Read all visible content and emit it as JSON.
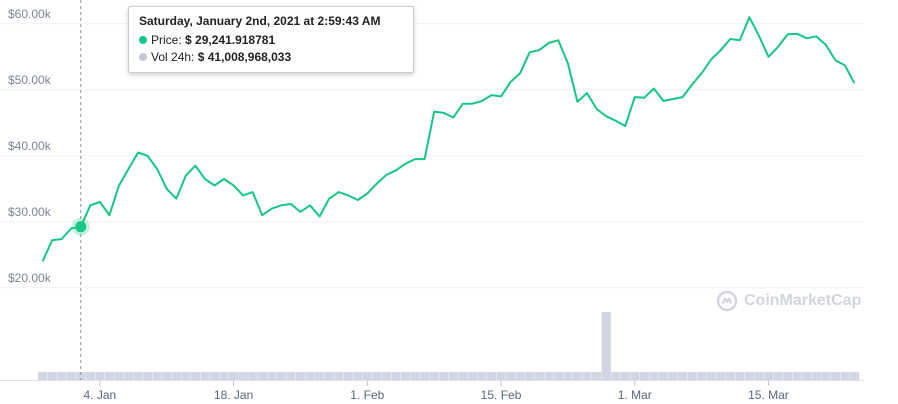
{
  "chart_data": {
    "type": "line",
    "y_tick_labels": [
      "$20.00k",
      "$30.00k",
      "$40.00k",
      "$50.00k",
      "$60.00k"
    ],
    "y_tick_values": [
      20000,
      30000,
      40000,
      50000,
      60000
    ],
    "x_tick_labels": [
      "4. Jan",
      "18. Jan",
      "1. Feb",
      "15. Feb",
      "1. Mar",
      "15. Mar"
    ],
    "x_tick_dates": [
      "2021-01-04",
      "2021-01-18",
      "2021-02-01",
      "2021-02-15",
      "2021-03-01",
      "2021-03-15"
    ],
    "ylim": [
      13000,
      63000
    ],
    "grid": true,
    "series": [
      {
        "name": "Price",
        "color": "#16c784",
        "x": [
          "2020-12-29",
          "2020-12-30",
          "2020-12-31",
          "2021-01-01",
          "2021-01-02",
          "2021-01-03",
          "2021-01-04",
          "2021-01-05",
          "2021-01-06",
          "2021-01-07",
          "2021-01-08",
          "2021-01-09",
          "2021-01-10",
          "2021-01-11",
          "2021-01-12",
          "2021-01-13",
          "2021-01-14",
          "2021-01-15",
          "2021-01-16",
          "2021-01-17",
          "2021-01-18",
          "2021-01-19",
          "2021-01-20",
          "2021-01-21",
          "2021-01-22",
          "2021-01-23",
          "2021-01-24",
          "2021-01-25",
          "2021-01-26",
          "2021-01-27",
          "2021-01-28",
          "2021-01-29",
          "2021-01-30",
          "2021-01-31",
          "2021-02-01",
          "2021-02-02",
          "2021-02-03",
          "2021-02-04",
          "2021-02-05",
          "2021-02-06",
          "2021-02-07",
          "2021-02-08",
          "2021-02-09",
          "2021-02-10",
          "2021-02-11",
          "2021-02-12",
          "2021-02-13",
          "2021-02-14",
          "2021-02-15",
          "2021-02-16",
          "2021-02-17",
          "2021-02-18",
          "2021-02-19",
          "2021-02-20",
          "2021-02-21",
          "2021-02-22",
          "2021-02-23",
          "2021-02-24",
          "2021-02-25",
          "2021-02-26",
          "2021-02-27",
          "2021-02-28",
          "2021-03-01",
          "2021-03-02",
          "2021-03-03",
          "2021-03-04",
          "2021-03-05",
          "2021-03-06",
          "2021-03-07",
          "2021-03-08",
          "2021-03-09",
          "2021-03-10",
          "2021-03-11",
          "2021-03-12",
          "2021-03-13",
          "2021-03-14",
          "2021-03-15",
          "2021-03-16",
          "2021-03-17",
          "2021-03-18",
          "2021-03-19",
          "2021-03-20",
          "2021-03-21",
          "2021-03-22",
          "2021-03-23",
          "2021-03-24"
        ],
        "values": [
          24000,
          27200,
          27400,
          29000,
          29242,
          32500,
          33000,
          31000,
          35500,
          38000,
          40500,
          40000,
          38000,
          35000,
          33500,
          37000,
          38500,
          36500,
          35500,
          36500,
          35500,
          34000,
          34500,
          31000,
          32000,
          32500,
          32700,
          31500,
          32500,
          30800,
          33500,
          34500,
          34000,
          33300,
          34300,
          35800,
          37100,
          37800,
          38800,
          39500,
          39500,
          46700,
          46500,
          45800,
          47900,
          47900,
          48300,
          49200,
          49000,
          51200,
          52500,
          55700,
          56000,
          57100,
          57500,
          54000,
          48200,
          49500,
          47100,
          46000,
          45300,
          44500,
          48900,
          48800,
          50200,
          48300,
          48600,
          48900,
          50800,
          52500,
          54600,
          56000,
          57700,
          57500,
          61000,
          58200,
          55000,
          56500,
          58400,
          58500,
          57800,
          58100,
          56800,
          54500,
          53700,
          51000
        ]
      }
    ],
    "volume": {
      "name": "Vol 24h",
      "color": "#c3c8d8",
      "spike": {
        "x": "2021-02-26",
        "value": 350000000000
      },
      "typical_value": 41000000000
    }
  },
  "tooltip": {
    "title": "Saturday, January 2nd, 2021 at 2:59:43 AM",
    "price_label": "Price:",
    "price_value": "$ 29,241.918781",
    "volume_label": "Vol 24h:",
    "volume_value": "$ 41,008,968,033",
    "price_color": "#16c784",
    "volume_color": "#c3c8d8"
  },
  "watermark": {
    "text": "CoinMarketCap",
    "icon": "coinmarketcap-logo-icon",
    "color": "#d2d5dc"
  },
  "hover": {
    "x": "2021-01-02",
    "value": 29242
  }
}
